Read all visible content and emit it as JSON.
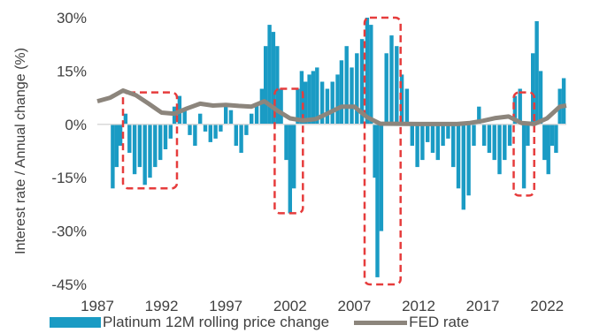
{
  "chart_data": {
    "type": "bar",
    "title": "",
    "xlabel": "",
    "ylabel": "Interest rate / Annual change (%)",
    "ylim": [
      -45,
      30
    ],
    "xlim": [
      1987,
      2023.5
    ],
    "y_ticks": [
      "30%",
      "15%",
      "0%",
      "-15%",
      "-30%",
      "-45%"
    ],
    "y_tick_values": [
      30,
      15,
      0,
      -15,
      -30,
      -45
    ],
    "x_ticks": [
      "1987",
      "1992",
      "1997",
      "2002",
      "2007",
      "2012",
      "2017",
      "2022"
    ],
    "x_tick_values": [
      1987,
      1992,
      1997,
      2002,
      2007,
      2012,
      2017,
      2022
    ],
    "grid": false,
    "legend_position": "bottom",
    "colors": {
      "bars": "#1a9bc4",
      "line": "#8c857c",
      "highlight": "#e63c3c",
      "axis": "#d9d9d9"
    },
    "series": [
      {
        "name": "Platinum 12M rolling price change",
        "type": "bar",
        "points": [
          [
            1988.2,
            -18
          ],
          [
            1988.5,
            -12
          ],
          [
            1988.8,
            -6
          ],
          [
            1989.2,
            3
          ],
          [
            1989.5,
            -8
          ],
          [
            1989.9,
            -14
          ],
          [
            1990.3,
            -12
          ],
          [
            1990.7,
            -17
          ],
          [
            1991.1,
            -15
          ],
          [
            1991.5,
            -12
          ],
          [
            1991.9,
            -10
          ],
          [
            1992.3,
            -7
          ],
          [
            1992.7,
            -4
          ],
          [
            1993.0,
            5
          ],
          [
            1993.4,
            8
          ],
          [
            1993.8,
            4
          ],
          [
            1994.2,
            -3
          ],
          [
            1994.6,
            -6
          ],
          [
            1995.0,
            3
          ],
          [
            1995.4,
            -2
          ],
          [
            1995.8,
            -5
          ],
          [
            1996.2,
            -4
          ],
          [
            1996.6,
            -2
          ],
          [
            1997.0,
            6
          ],
          [
            1997.4,
            4
          ],
          [
            1997.8,
            -6
          ],
          [
            1998.2,
            -8
          ],
          [
            1998.6,
            -3
          ],
          [
            1999.0,
            3
          ],
          [
            1999.4,
            6
          ],
          [
            1999.8,
            10
          ],
          [
            2000.1,
            22
          ],
          [
            2000.4,
            28
          ],
          [
            2000.7,
            26
          ],
          [
            2001.0,
            22
          ],
          [
            2001.3,
            10
          ],
          [
            2001.7,
            -10
          ],
          [
            2002.0,
            -25
          ],
          [
            2002.3,
            -18
          ],
          [
            2002.6,
            10
          ],
          [
            2002.9,
            15
          ],
          [
            2003.2,
            12
          ],
          [
            2003.5,
            14
          ],
          [
            2003.8,
            15
          ],
          [
            2004.1,
            16
          ],
          [
            2004.5,
            12
          ],
          [
            2004.9,
            10
          ],
          [
            2005.3,
            12
          ],
          [
            2005.7,
            14
          ],
          [
            2006.0,
            18
          ],
          [
            2006.4,
            22
          ],
          [
            2006.8,
            16
          ],
          [
            2007.2,
            20
          ],
          [
            2007.6,
            24
          ],
          [
            2008.0,
            30
          ],
          [
            2008.3,
            28
          ],
          [
            2008.6,
            -15
          ],
          [
            2008.8,
            -43
          ],
          [
            2009.1,
            -30
          ],
          [
            2009.5,
            20
          ],
          [
            2009.9,
            25
          ],
          [
            2010.3,
            22
          ],
          [
            2010.7,
            14
          ],
          [
            2011.1,
            10
          ],
          [
            2011.5,
            -6
          ],
          [
            2011.9,
            -12
          ],
          [
            2012.3,
            -10
          ],
          [
            2012.7,
            -5
          ],
          [
            2013.1,
            -8
          ],
          [
            2013.5,
            -10
          ],
          [
            2013.9,
            -6
          ],
          [
            2014.3,
            -4
          ],
          [
            2014.7,
            -12
          ],
          [
            2015.1,
            -18
          ],
          [
            2015.5,
            -24
          ],
          [
            2015.9,
            -20
          ],
          [
            2016.3,
            -6
          ],
          [
            2016.7,
            5
          ],
          [
            2017.1,
            -6
          ],
          [
            2017.5,
            -8
          ],
          [
            2017.9,
            -10
          ],
          [
            2018.3,
            -14
          ],
          [
            2018.7,
            -10
          ],
          [
            2019.1,
            -6
          ],
          [
            2019.5,
            8
          ],
          [
            2019.9,
            10
          ],
          [
            2020.2,
            -18
          ],
          [
            2020.5,
            -6
          ],
          [
            2020.9,
            20
          ],
          [
            2021.2,
            29
          ],
          [
            2021.5,
            15
          ],
          [
            2021.8,
            -10
          ],
          [
            2022.1,
            -14
          ],
          [
            2022.4,
            -6
          ],
          [
            2022.7,
            -8
          ],
          [
            2023.0,
            10
          ],
          [
            2023.3,
            13
          ]
        ]
      },
      {
        "name": "FED rate",
        "type": "line",
        "points": [
          [
            1987,
            6.5
          ],
          [
            1988,
            7.5
          ],
          [
            1989,
            9.5
          ],
          [
            1990,
            8.2
          ],
          [
            1991,
            5.8
          ],
          [
            1992,
            3.3
          ],
          [
            1993,
            3.0
          ],
          [
            1994,
            4.5
          ],
          [
            1995,
            5.8
          ],
          [
            1996,
            5.3
          ],
          [
            1997,
            5.5
          ],
          [
            1998,
            5.2
          ],
          [
            1999,
            5.0
          ],
          [
            2000,
            6.5
          ],
          [
            2001,
            3.9
          ],
          [
            2002,
            1.7
          ],
          [
            2003,
            1.1
          ],
          [
            2004,
            1.5
          ],
          [
            2005,
            3.2
          ],
          [
            2006,
            5.0
          ],
          [
            2007,
            5.0
          ],
          [
            2008,
            2.0
          ],
          [
            2009,
            0.2
          ],
          [
            2012,
            0.1
          ],
          [
            2015,
            0.1
          ],
          [
            2016,
            0.4
          ],
          [
            2017,
            1.0
          ],
          [
            2018,
            1.8
          ],
          [
            2019,
            2.2
          ],
          [
            2020,
            0.4
          ],
          [
            2021,
            0.1
          ],
          [
            2022,
            1.7
          ],
          [
            2023,
            5.0
          ],
          [
            2023.5,
            5.3
          ]
        ]
      }
    ],
    "highlights": [
      {
        "from": 1989.0,
        "to": 1993.2,
        "y_top": 9,
        "y_bottom": -18
      },
      {
        "from": 2000.8,
        "to": 2003.0,
        "y_top": 10,
        "y_bottom": -25
      },
      {
        "from": 2007.8,
        "to": 2010.6,
        "y_top": 30,
        "y_bottom": -45
      },
      {
        "from": 2019.4,
        "to": 2021.0,
        "y_top": 9,
        "y_bottom": -20
      }
    ]
  }
}
